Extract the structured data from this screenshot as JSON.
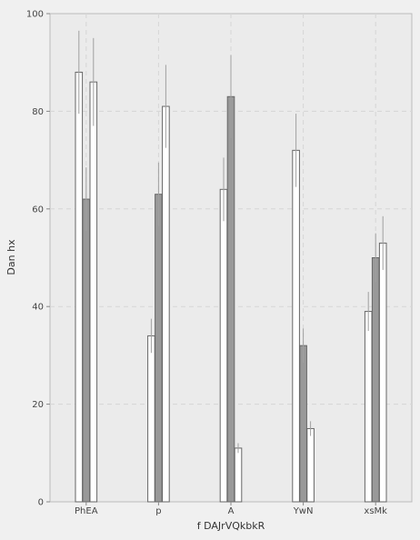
{
  "chart_data": {
    "type": "bar",
    "xlabel": "f DAJrVQkbkR",
    "ylabel": "Dan hx",
    "ylim": [
      0,
      100
    ],
    "yticks": [
      0,
      20,
      40,
      60,
      80,
      100
    ],
    "grid": true,
    "categories": [
      "PhEA",
      "p",
      "A",
      "YwN",
      "xsMk"
    ],
    "series": [
      {
        "values": [
          88,
          34,
          64,
          72,
          39
        ],
        "errors": [
          8.5,
          3.5,
          6.5,
          7.5,
          4
        ],
        "color": "#ffffff"
      },
      {
        "values": [
          62,
          63,
          83,
          32,
          50
        ],
        "errors": [
          6.5,
          6.5,
          8.5,
          3.5,
          5
        ],
        "color": "#999999"
      },
      {
        "values": [
          86,
          81,
          11,
          15,
          53
        ],
        "errors": [
          9,
          8.5,
          1,
          1.5,
          5.5
        ],
        "color": "#ffffff"
      }
    ]
  }
}
